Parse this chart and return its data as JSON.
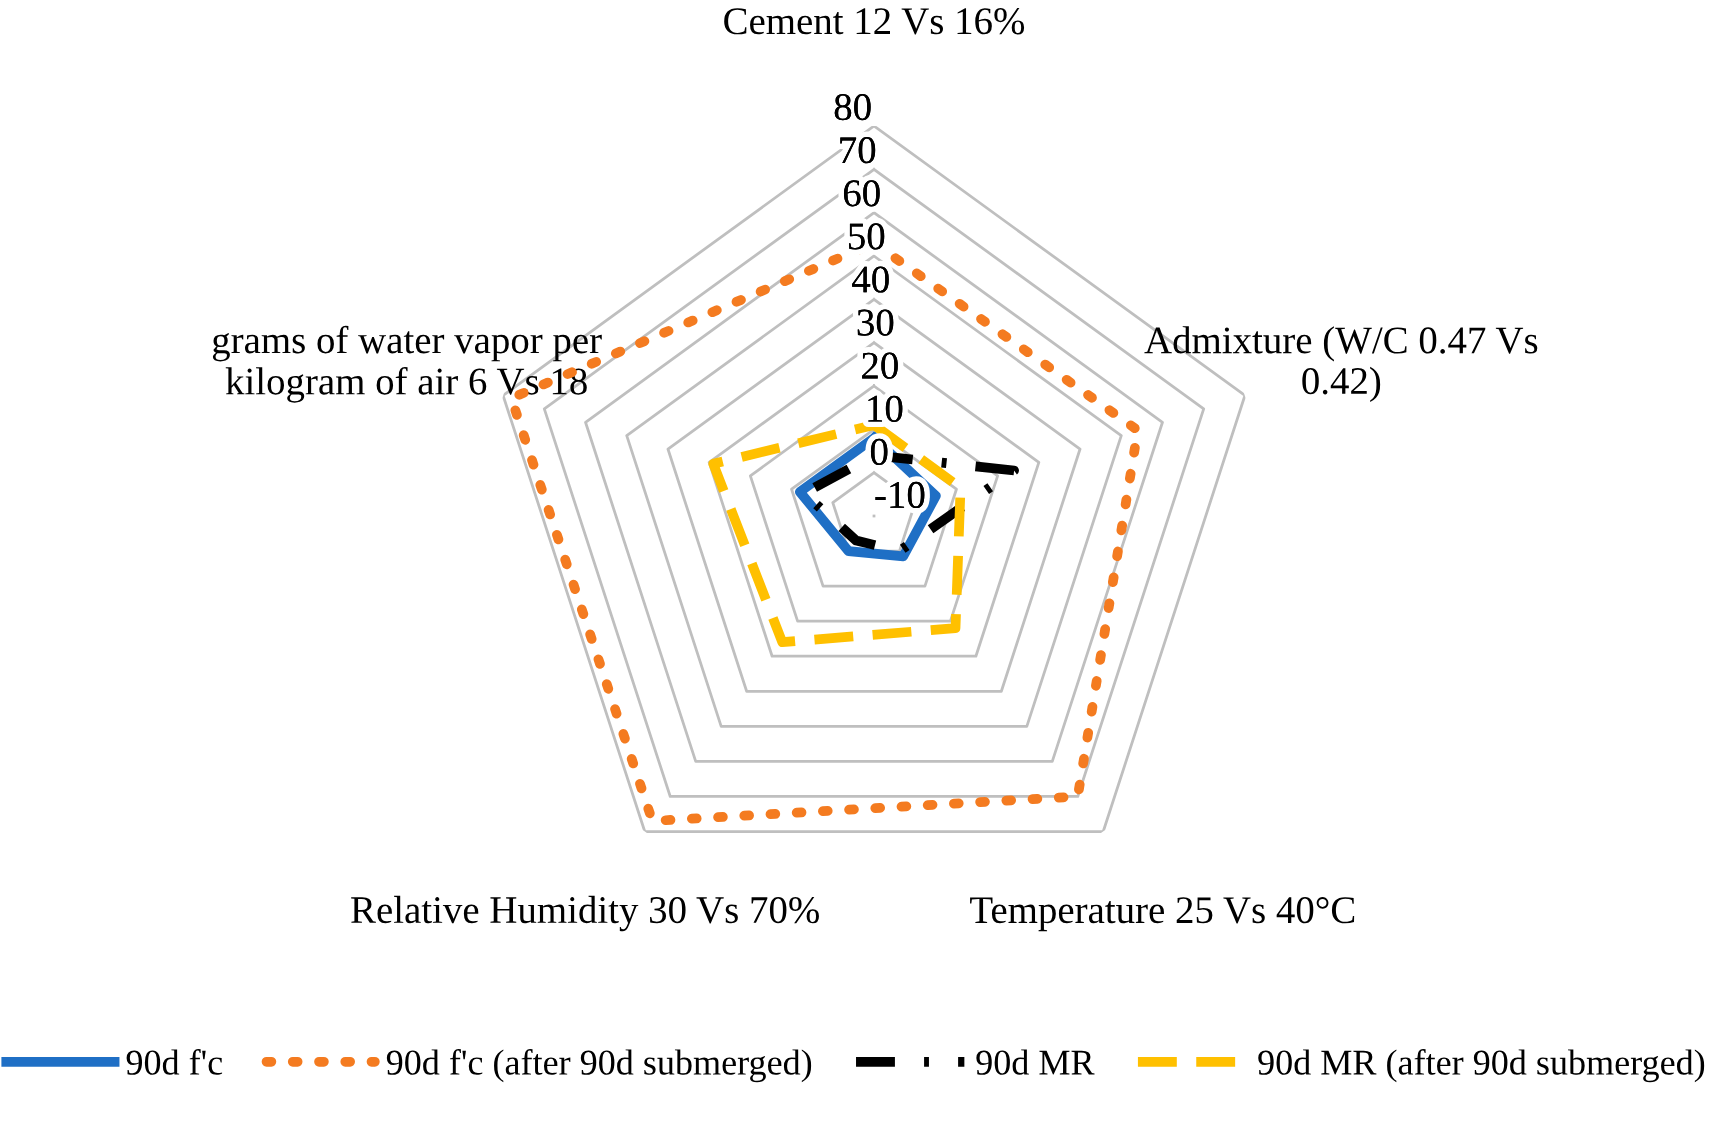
{
  "chart_data": {
    "type": "radar",
    "categories": [
      "Cement 12 Vs 16%",
      "Admixture (W/C 0.47 Vs\n0.42)",
      "Temperature 25 Vs 40°C",
      "Relative Humidity 30 Vs 70%",
      "grams of water vapor per\nkilogram of air 6 Vs 18"
    ],
    "series": [
      {
        "name": "90d f'c",
        "color": "#1f6fc5",
        "line_style": "solid",
        "values": [
          8,
          5,
          1.5,
          0,
          8
        ]
      },
      {
        "name": "90d f'c (after 90d submerged)",
        "color": "#f47b20",
        "line_style": "dotted",
        "values": [
          53,
          54,
          70,
          77,
          78
        ]
      },
      {
        "name": "90d MR",
        "color": "#000000",
        "line_style": "dashdot",
        "values": [
          4,
          24,
          0,
          -3,
          7
        ]
      },
      {
        "name": "90d MR (after 90d submerged)",
        "color": "#ffc000",
        "line_style": "dashed",
        "values": [
          11,
          11,
          22,
          26,
          29
        ]
      }
    ],
    "ylim": [
      -10,
      80
    ],
    "yticks": [
      -10,
      0,
      10,
      20,
      30,
      40,
      50,
      60,
      70,
      80
    ],
    "grid": true,
    "legend": "bottom",
    "marker": "none"
  }
}
